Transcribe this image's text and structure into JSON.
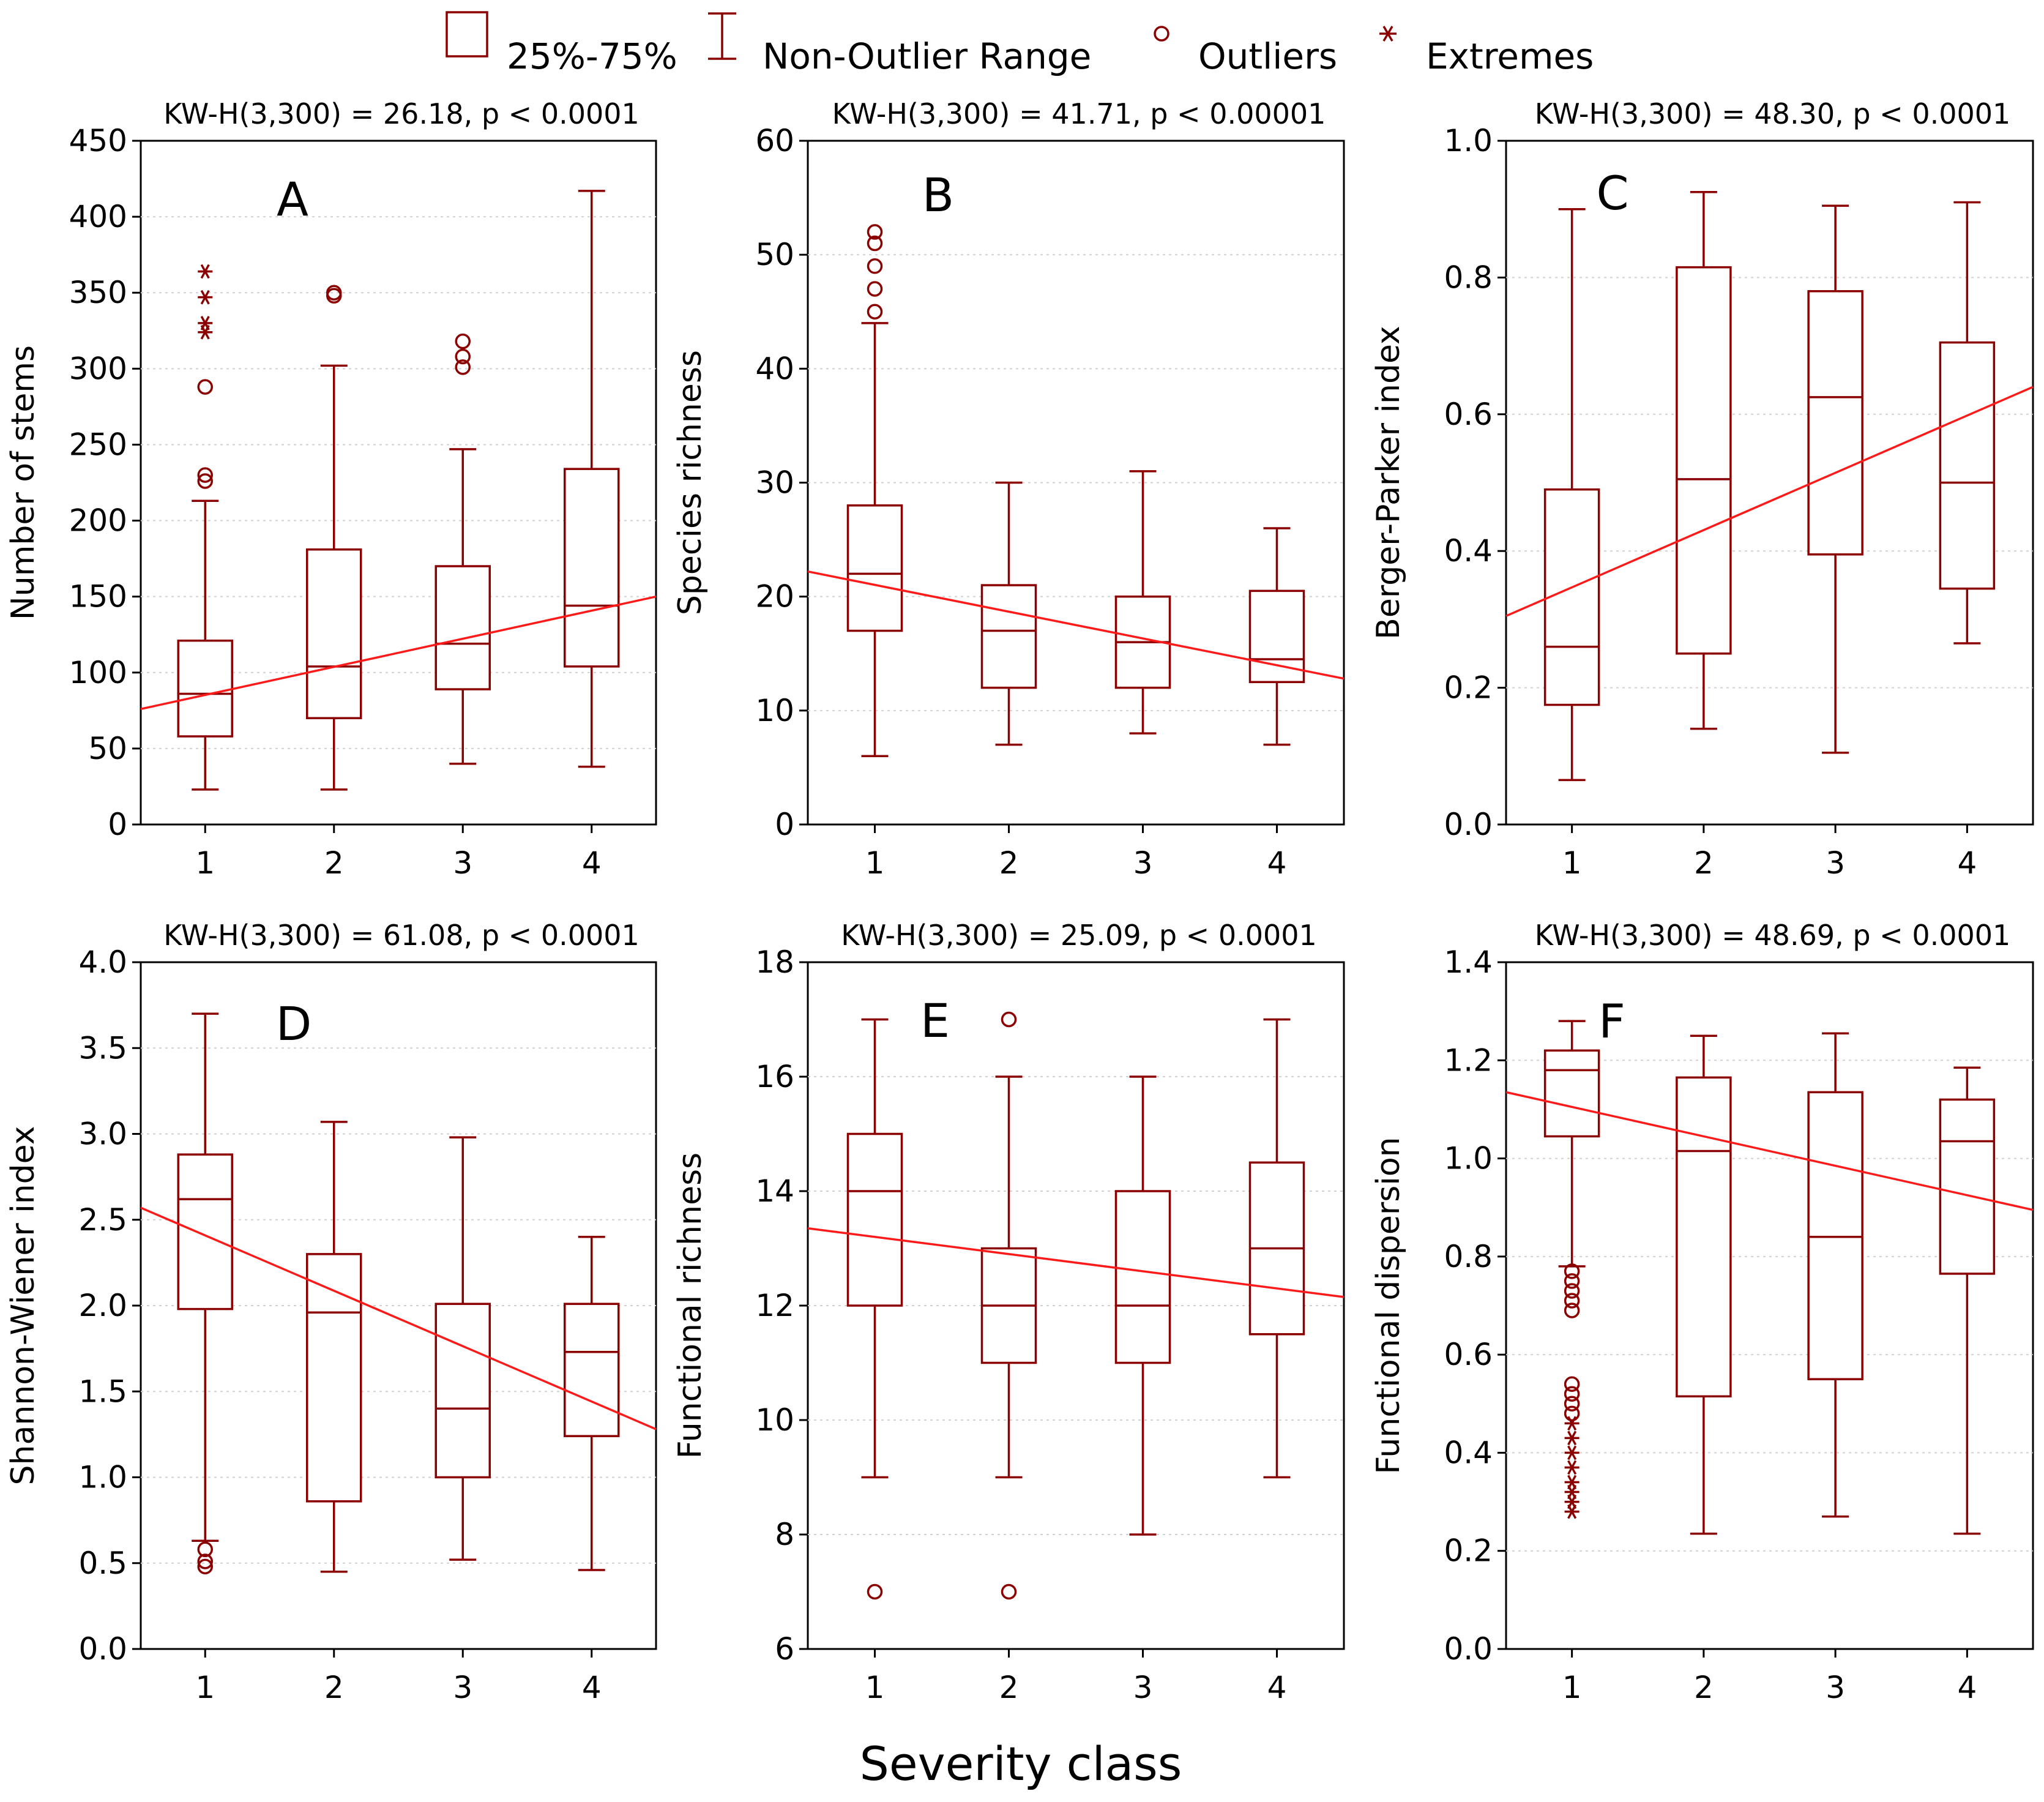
{
  "colors": {
    "box": "#8b0000",
    "trend": "#ff1a1a",
    "grid": "#d2d2d2",
    "axis": "#000000"
  },
  "legend": {
    "items": [
      {
        "label": "25%-75%",
        "symbol": "box-icon"
      },
      {
        "label": "Non-Outlier Range",
        "symbol": "whisker-icon"
      },
      {
        "label": "Outliers",
        "symbol": "circle-icon"
      },
      {
        "label": "Extremes",
        "symbol": "asterisk-icon"
      }
    ]
  },
  "xlabel": "Severity class",
  "chart_data": [
    {
      "type": "box",
      "panel": "A",
      "stat": "KW-H(3,300) = 26.18, p < 0.0001",
      "ylabel": "Number of stems",
      "categories": [
        "1",
        "2",
        "3",
        "4"
      ],
      "ylim": [
        0,
        450
      ],
      "ticks": [
        0,
        50,
        100,
        150,
        200,
        250,
        300,
        350,
        400,
        450
      ],
      "boxes": [
        {
          "whisker_low": 23,
          "q1": 58,
          "median": 86,
          "q3": 121,
          "whisker_high": 213,
          "outliers": [
            226,
            230,
            288
          ],
          "extremes": [
            324,
            330,
            347,
            364
          ]
        },
        {
          "whisker_low": 23,
          "q1": 70,
          "median": 104,
          "q3": 181,
          "whisker_high": 302,
          "outliers": [
            348,
            350
          ],
          "extremes": []
        },
        {
          "whisker_low": 40,
          "q1": 89,
          "median": 119,
          "q3": 170,
          "whisker_high": 247,
          "outliers": [
            301,
            308,
            318
          ],
          "extremes": []
        },
        {
          "whisker_low": 38,
          "q1": 104,
          "median": 144,
          "q3": 234,
          "whisker_high": 417,
          "outliers": [],
          "extremes": []
        }
      ],
      "trend": {
        "at_x_0_5": 76,
        "at_x_4_5": 150
      }
    },
    {
      "type": "box",
      "panel": "B",
      "stat": "KW-H(3,300) = 41.71, p < 0.00001",
      "ylabel": "Species richness",
      "categories": [
        "1",
        "2",
        "3",
        "4"
      ],
      "ylim": [
        0,
        60
      ],
      "ticks": [
        0,
        10,
        20,
        30,
        40,
        50,
        60
      ],
      "boxes": [
        {
          "whisker_low": 6,
          "q1": 17,
          "median": 22,
          "q3": 28,
          "whisker_high": 44,
          "outliers": [
            45,
            47,
            49,
            51,
            52
          ],
          "extremes": []
        },
        {
          "whisker_low": 7,
          "q1": 12,
          "median": 17,
          "q3": 21,
          "whisker_high": 30,
          "outliers": [],
          "extremes": []
        },
        {
          "whisker_low": 8,
          "q1": 12,
          "median": 16,
          "q3": 20,
          "whisker_high": 31,
          "outliers": [],
          "extremes": []
        },
        {
          "whisker_low": 7,
          "q1": 12.5,
          "median": 14.5,
          "q3": 20.5,
          "whisker_high": 26,
          "outliers": [],
          "extremes": []
        }
      ],
      "trend": {
        "at_x_0_5": 22.2,
        "at_x_4_5": 12.8
      }
    },
    {
      "type": "box",
      "panel": "C",
      "stat": "KW-H(3,300) = 48.30, p < 0.0001",
      "ylabel": "Berger-Parker index",
      "categories": [
        "1",
        "2",
        "3",
        "4"
      ],
      "ylim": [
        0,
        1
      ],
      "ticks": [
        0,
        0.2,
        0.4,
        0.6,
        0.8,
        1.0
      ],
      "tick_labels": [
        "0.0",
        "0.2",
        "0.4",
        "0.6",
        "0.8",
        "1.0"
      ],
      "boxes": [
        {
          "whisker_low": 0.065,
          "q1": 0.175,
          "median": 0.26,
          "q3": 0.49,
          "whisker_high": 0.9,
          "outliers": [],
          "extremes": []
        },
        {
          "whisker_low": 0.14,
          "q1": 0.25,
          "median": 0.505,
          "q3": 0.815,
          "whisker_high": 0.925,
          "outliers": [],
          "extremes": []
        },
        {
          "whisker_low": 0.105,
          "q1": 0.395,
          "median": 0.625,
          "q3": 0.78,
          "whisker_high": 0.905,
          "outliers": [],
          "extremes": []
        },
        {
          "whisker_low": 0.265,
          "q1": 0.345,
          "median": 0.5,
          "q3": 0.705,
          "whisker_high": 0.91,
          "outliers": [],
          "extremes": []
        }
      ],
      "trend": {
        "at_x_0_5": 0.305,
        "at_x_4_5": 0.64
      }
    },
    {
      "type": "box",
      "panel": "D",
      "stat": "KW-H(3,300) = 61.08, p < 0.0001",
      "ylabel": "Shannon-Wiener index",
      "categories": [
        "1",
        "2",
        "3",
        "4"
      ],
      "ylim": [
        0,
        4
      ],
      "ticks": [
        0,
        0.5,
        1,
        1.5,
        2,
        2.5,
        3,
        3.5,
        4
      ],
      "tick_labels": [
        "0.0",
        "0.5",
        "1.0",
        "1.5",
        "2.0",
        "2.5",
        "3.0",
        "3.5",
        "4.0"
      ],
      "boxes": [
        {
          "whisker_low": 0.63,
          "q1": 1.98,
          "median": 2.62,
          "q3": 2.88,
          "whisker_high": 3.7,
          "outliers": [
            0.48,
            0.51,
            0.58
          ],
          "extremes": []
        },
        {
          "whisker_low": 0.45,
          "q1": 0.86,
          "median": 1.96,
          "q3": 2.3,
          "whisker_high": 3.07,
          "outliers": [],
          "extremes": []
        },
        {
          "whisker_low": 0.52,
          "q1": 1.0,
          "median": 1.4,
          "q3": 2.01,
          "whisker_high": 2.98,
          "outliers": [],
          "extremes": []
        },
        {
          "whisker_low": 0.46,
          "q1": 1.24,
          "median": 1.73,
          "q3": 2.01,
          "whisker_high": 2.4,
          "outliers": [],
          "extremes": []
        }
      ],
      "trend": {
        "at_x_0_5": 2.57,
        "at_x_4_5": 1.28
      }
    },
    {
      "type": "box",
      "panel": "E",
      "stat": "KW-H(3,300) = 25.09, p < 0.0001",
      "ylabel": "Functional richness",
      "categories": [
        "1",
        "2",
        "3",
        "4"
      ],
      "ylim": [
        6,
        18
      ],
      "ticks": [
        6,
        8,
        10,
        12,
        14,
        16,
        18
      ],
      "boxes": [
        {
          "whisker_low": 9,
          "q1": 12,
          "median": 14,
          "q3": 15,
          "whisker_high": 17,
          "outliers": [
            7
          ],
          "extremes": []
        },
        {
          "whisker_low": 9,
          "q1": 11,
          "median": 12,
          "q3": 13,
          "whisker_high": 16,
          "outliers": [
            7,
            17
          ],
          "extremes": []
        },
        {
          "whisker_low": 8,
          "q1": 11,
          "median": 12,
          "q3": 14,
          "whisker_high": 16,
          "outliers": [],
          "extremes": []
        },
        {
          "whisker_low": 9,
          "q1": 11.5,
          "median": 13,
          "q3": 14.5,
          "whisker_high": 17,
          "outliers": [],
          "extremes": []
        }
      ],
      "trend": {
        "at_x_0_5": 13.35,
        "at_x_4_5": 12.15
      }
    },
    {
      "type": "box",
      "panel": "F",
      "stat": "KW-H(3,300) = 48.69, p < 0.0001",
      "ylabel": "Functional dispersion",
      "categories": [
        "1",
        "2",
        "3",
        "4"
      ],
      "ylim": [
        0,
        1.4
      ],
      "ticks": [
        0,
        0.2,
        0.4,
        0.6,
        0.8,
        1.0,
        1.2,
        1.4
      ],
      "tick_labels": [
        "0.0",
        "0.2",
        "0.4",
        "0.6",
        "0.8",
        "1.0",
        "1.2",
        "1.4"
      ],
      "boxes": [
        {
          "whisker_low": 0.78,
          "q1": 1.045,
          "median": 1.18,
          "q3": 1.22,
          "whisker_high": 1.28,
          "outliers": [
            0.69,
            0.71,
            0.73,
            0.75,
            0.77,
            0.48,
            0.5,
            0.52,
            0.54
          ],
          "extremes": [
            0.28,
            0.3,
            0.32,
            0.34,
            0.37,
            0.4,
            0.43,
            0.46
          ]
        },
        {
          "whisker_low": 0.235,
          "q1": 0.515,
          "median": 1.015,
          "q3": 1.165,
          "whisker_high": 1.25,
          "outliers": [],
          "extremes": []
        },
        {
          "whisker_low": 0.27,
          "q1": 0.55,
          "median": 0.84,
          "q3": 1.135,
          "whisker_high": 1.255,
          "outliers": [],
          "extremes": []
        },
        {
          "whisker_low": 0.235,
          "q1": 0.765,
          "median": 1.035,
          "q3": 1.12,
          "whisker_high": 1.185,
          "outliers": [],
          "extremes": []
        }
      ],
      "trend": {
        "at_x_0_5": 1.135,
        "at_x_4_5": 0.895
      }
    }
  ]
}
